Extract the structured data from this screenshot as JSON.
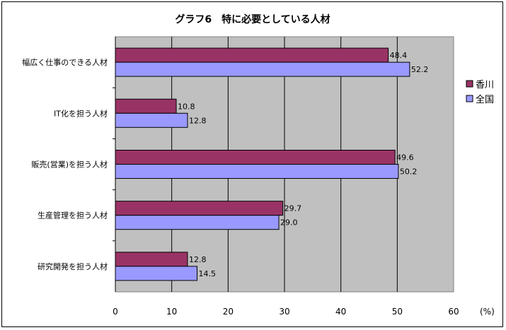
{
  "chart_data": {
    "type": "bar",
    "orientation": "horizontal",
    "title": "グラフ6　特に必要としている人材",
    "unit_label": "(%)",
    "categories": [
      "幅広く仕事のできる人材",
      "IT化を担う人材",
      "販売(営業)を担う人材",
      "生産管理を担う人材",
      "研究開発を担う人材"
    ],
    "series": [
      {
        "name": "香川",
        "color": "#993366",
        "values": [
          48.4,
          10.8,
          49.6,
          29.7,
          12.8
        ],
        "labels": [
          "48.4",
          "10.8",
          "49.6",
          "29.7",
          "12.8"
        ]
      },
      {
        "name": "全国",
        "color": "#9999ff",
        "values": [
          52.2,
          12.8,
          50.2,
          29.0,
          14.5
        ],
        "labels": [
          "52.2",
          "12.8",
          "50.2",
          "29.0",
          "14.5"
        ]
      }
    ],
    "xlim": [
      0,
      60
    ],
    "xticks": [
      "0",
      "10",
      "20",
      "30",
      "40",
      "50",
      "60"
    ],
    "grid": true,
    "plot_background": "#c0c0c0",
    "legend_position": "right"
  }
}
